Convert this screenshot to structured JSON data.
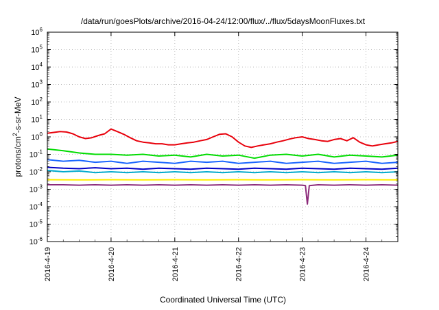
{
  "chart_data": {
    "type": "line",
    "title": "/data/run/goesPlots/archive/2016-04-24/12:00/flux/../flux/5daysMoonFluxes.txt",
    "xlabel": "Coordinated Universal Time (UTC)",
    "ylabel": {
      "prefix": "protons/cm",
      "superscript": "2",
      "suffix": "-s-sr-MeV"
    },
    "y_scale": "log",
    "ylim_exponents": [
      -6,
      6
    ],
    "y_ticks": [
      {
        "base": "10",
        "exp": "6"
      },
      {
        "base": "10",
        "exp": "5"
      },
      {
        "base": "10",
        "exp": "4"
      },
      {
        "base": "10",
        "exp": "3"
      },
      {
        "base": "10",
        "exp": "2"
      },
      {
        "base": "10",
        "exp": "1"
      },
      {
        "base": "10",
        "exp": "0"
      },
      {
        "base": "10",
        "exp": "-1"
      },
      {
        "base": "10",
        "exp": "-2"
      },
      {
        "base": "10",
        "exp": "-3"
      },
      {
        "base": "10",
        "exp": "-4"
      },
      {
        "base": "10",
        "exp": "-5"
      },
      {
        "base": "10",
        "exp": "-6"
      }
    ],
    "x_ticks": [
      "2016-4-19",
      "2016-4-20",
      "2016-4-21",
      "2016-4-22",
      "2016-4-23",
      "2016-4-24"
    ],
    "xlim_days": [
      "2016-4-19",
      "2016-4-24 12:00"
    ],
    "grid": true,
    "legend": "none",
    "series": [
      {
        "color": "#e8000b",
        "values": [
          [
            0,
            1.6
          ],
          [
            0.1,
            1.8
          ],
          [
            0.2,
            2.0
          ],
          [
            0.3,
            1.9
          ],
          [
            0.4,
            1.5
          ],
          [
            0.5,
            1.0
          ],
          [
            0.6,
            0.8
          ],
          [
            0.7,
            0.9
          ],
          [
            0.8,
            1.2
          ],
          [
            0.9,
            1.5
          ],
          [
            1.0,
            2.8
          ],
          [
            1.1,
            2.0
          ],
          [
            1.2,
            1.4
          ],
          [
            1.3,
            0.9
          ],
          [
            1.4,
            0.6
          ],
          [
            1.5,
            0.5
          ],
          [
            1.6,
            0.45
          ],
          [
            1.7,
            0.4
          ],
          [
            1.8,
            0.4
          ],
          [
            1.9,
            0.35
          ],
          [
            2.0,
            0.35
          ],
          [
            2.1,
            0.4
          ],
          [
            2.2,
            0.45
          ],
          [
            2.3,
            0.5
          ],
          [
            2.4,
            0.6
          ],
          [
            2.5,
            0.7
          ],
          [
            2.6,
            1.0
          ],
          [
            2.7,
            1.4
          ],
          [
            2.8,
            1.5
          ],
          [
            2.9,
            1.0
          ],
          [
            3.0,
            0.5
          ],
          [
            3.1,
            0.3
          ],
          [
            3.2,
            0.25
          ],
          [
            3.3,
            0.3
          ],
          [
            3.4,
            0.35
          ],
          [
            3.5,
            0.4
          ],
          [
            3.6,
            0.5
          ],
          [
            3.7,
            0.6
          ],
          [
            3.8,
            0.75
          ],
          [
            3.9,
            0.9
          ],
          [
            4.0,
            1.0
          ],
          [
            4.1,
            0.8
          ],
          [
            4.2,
            0.7
          ],
          [
            4.3,
            0.6
          ],
          [
            4.4,
            0.55
          ],
          [
            4.5,
            0.7
          ],
          [
            4.6,
            0.8
          ],
          [
            4.7,
            0.6
          ],
          [
            4.8,
            0.9
          ],
          [
            4.9,
            0.5
          ],
          [
            5.0,
            0.35
          ],
          [
            5.1,
            0.3
          ],
          [
            5.2,
            0.35
          ],
          [
            5.3,
            0.4
          ],
          [
            5.4,
            0.45
          ],
          [
            5.5,
            0.55
          ]
        ]
      },
      {
        "color": "#00dc00",
        "values": [
          [
            0,
            0.2
          ],
          [
            0.25,
            0.16
          ],
          [
            0.5,
            0.12
          ],
          [
            0.75,
            0.1
          ],
          [
            1.0,
            0.1
          ],
          [
            1.25,
            0.09
          ],
          [
            1.5,
            0.1
          ],
          [
            1.75,
            0.08
          ],
          [
            2.0,
            0.09
          ],
          [
            2.25,
            0.07
          ],
          [
            2.5,
            0.1
          ],
          [
            2.75,
            0.08
          ],
          [
            3.0,
            0.09
          ],
          [
            3.25,
            0.06
          ],
          [
            3.5,
            0.09
          ],
          [
            3.75,
            0.1
          ],
          [
            4.0,
            0.08
          ],
          [
            4.25,
            0.1
          ],
          [
            4.5,
            0.07
          ],
          [
            4.75,
            0.09
          ],
          [
            5.0,
            0.08
          ],
          [
            5.25,
            0.07
          ],
          [
            5.5,
            0.09
          ]
        ]
      },
      {
        "color": "#1a66ff",
        "values": [
          [
            0,
            0.05
          ],
          [
            0.25,
            0.04
          ],
          [
            0.5,
            0.045
          ],
          [
            0.75,
            0.035
          ],
          [
            1.0,
            0.04
          ],
          [
            1.25,
            0.03
          ],
          [
            1.5,
            0.04
          ],
          [
            1.75,
            0.035
          ],
          [
            2.0,
            0.03
          ],
          [
            2.25,
            0.04
          ],
          [
            2.5,
            0.035
          ],
          [
            2.75,
            0.04
          ],
          [
            3.0,
            0.03
          ],
          [
            3.25,
            0.035
          ],
          [
            3.5,
            0.04
          ],
          [
            3.75,
            0.03
          ],
          [
            4.0,
            0.035
          ],
          [
            4.25,
            0.04
          ],
          [
            4.5,
            0.03
          ],
          [
            4.75,
            0.035
          ],
          [
            5.0,
            0.04
          ],
          [
            5.25,
            0.03
          ],
          [
            5.5,
            0.035
          ]
        ]
      },
      {
        "color": "#00aacc",
        "values": [
          [
            0,
            0.012
          ],
          [
            0.25,
            0.01
          ],
          [
            0.5,
            0.011
          ],
          [
            0.75,
            0.009
          ],
          [
            1.0,
            0.01
          ],
          [
            1.25,
            0.009
          ],
          [
            1.5,
            0.01
          ],
          [
            1.75,
            0.009
          ],
          [
            2.0,
            0.01
          ],
          [
            2.25,
            0.009
          ],
          [
            2.5,
            0.01
          ],
          [
            2.75,
            0.009
          ],
          [
            3.0,
            0.01
          ],
          [
            3.25,
            0.009
          ],
          [
            3.5,
            0.01
          ],
          [
            3.75,
            0.009
          ],
          [
            4.0,
            0.01
          ],
          [
            4.25,
            0.009
          ],
          [
            4.5,
            0.01
          ],
          [
            4.75,
            0.009
          ],
          [
            5.0,
            0.01
          ],
          [
            5.25,
            0.009
          ],
          [
            5.5,
            0.01
          ]
        ]
      },
      {
        "color": "#0000c8",
        "values": [
          [
            0,
            0.018
          ],
          [
            0.25,
            0.016
          ],
          [
            0.5,
            0.015
          ],
          [
            0.75,
            0.017
          ],
          [
            1.0,
            0.015
          ],
          [
            1.25,
            0.016
          ],
          [
            1.5,
            0.014
          ],
          [
            1.75,
            0.016
          ],
          [
            2.0,
            0.015
          ],
          [
            2.25,
            0.014
          ],
          [
            2.5,
            0.016
          ],
          [
            2.75,
            0.015
          ],
          [
            3.0,
            0.014
          ],
          [
            3.25,
            0.016
          ],
          [
            3.5,
            0.015
          ],
          [
            3.75,
            0.014
          ],
          [
            4.0,
            0.016
          ],
          [
            4.25,
            0.015
          ],
          [
            4.5,
            0.014
          ],
          [
            4.75,
            0.016
          ],
          [
            5.0,
            0.015
          ],
          [
            5.25,
            0.014
          ],
          [
            5.5,
            0.016
          ]
        ]
      },
      {
        "color": "#ffee00",
        "values": [
          [
            0,
            0.0035
          ],
          [
            0.5,
            0.0034
          ],
          [
            1.0,
            0.0035
          ],
          [
            1.5,
            0.0034
          ],
          [
            2.0,
            0.0035
          ],
          [
            2.5,
            0.0034
          ],
          [
            3.0,
            0.0035
          ],
          [
            3.5,
            0.0034
          ],
          [
            4.0,
            0.0035
          ],
          [
            4.5,
            0.0034
          ],
          [
            5.0,
            0.0035
          ],
          [
            5.5,
            0.0034
          ]
        ]
      },
      {
        "color": "#8c2a7a",
        "values": [
          [
            0,
            0.0018
          ],
          [
            0.25,
            0.0018
          ],
          [
            0.5,
            0.0017
          ],
          [
            0.75,
            0.0018
          ],
          [
            1.0,
            0.0017
          ],
          [
            1.25,
            0.0018
          ],
          [
            1.5,
            0.0017
          ],
          [
            1.75,
            0.0018
          ],
          [
            2.0,
            0.0017
          ],
          [
            2.25,
            0.0018
          ],
          [
            2.5,
            0.0017
          ],
          [
            2.75,
            0.0018
          ],
          [
            3.0,
            0.0017
          ],
          [
            3.25,
            0.0018
          ],
          [
            3.5,
            0.0017
          ],
          [
            3.75,
            0.0018
          ],
          [
            4.0,
            0.0017
          ],
          [
            4.05,
            0.0016
          ],
          [
            4.08,
            0.00014
          ],
          [
            4.11,
            0.0016
          ],
          [
            4.25,
            0.0018
          ],
          [
            4.5,
            0.0017
          ],
          [
            4.75,
            0.0018
          ],
          [
            5.0,
            0.0017
          ],
          [
            5.25,
            0.0018
          ],
          [
            5.5,
            0.0017
          ]
        ]
      }
    ]
  }
}
